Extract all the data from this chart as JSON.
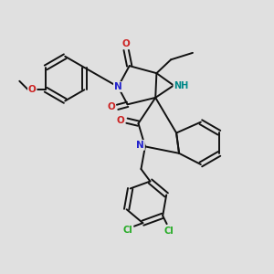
{
  "background_color": "#e0e0e0",
  "bond_color": "#111111",
  "bond_width": 1.4,
  "N_color": "#2222cc",
  "O_color": "#cc2222",
  "Cl_color": "#22aa22",
  "NH_color": "#008888",
  "fig_w": 3.0,
  "fig_h": 3.0,
  "dpi": 100,
  "xlim": [
    0,
    10
  ],
  "ylim": [
    0,
    10
  ]
}
